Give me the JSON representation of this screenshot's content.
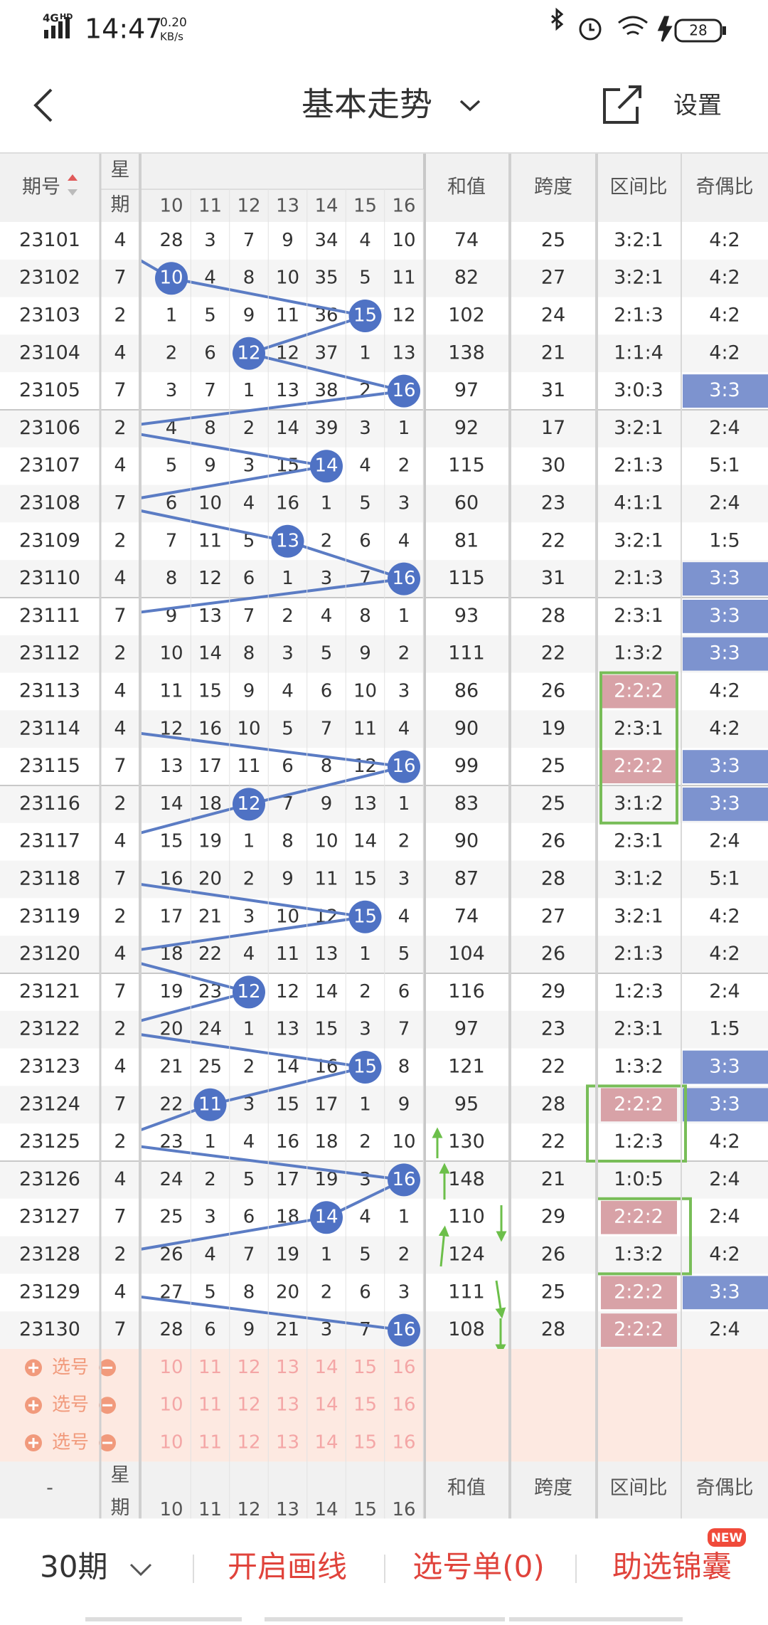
{
  "status_bar": {
    "network": "4G",
    "hd": "HD",
    "time": "14:47",
    "speed": "0.20",
    "speed_unit": "KB/s",
    "battery": "28"
  },
  "nav": {
    "title": "基本走势",
    "settings": "设置"
  },
  "table": {
    "headers": {
      "period": "期号",
      "weekday": [
        "星",
        "期"
      ],
      "numbers": [
        "10",
        "11",
        "12",
        "13",
        "14",
        "15",
        "16"
      ],
      "sum": "和值",
      "span": "跨度",
      "zone": "区间比",
      "odd_even": "奇偶比"
    },
    "rows": [
      {
        "period": "23101",
        "weekday": "4",
        "cells": [
          28,
          3,
          7,
          9,
          34,
          4,
          10
        ],
        "ball_column": null,
        "sum": 74,
        "span": 25,
        "zone": "3:2:1",
        "odd_even": "4:2"
      },
      {
        "period": "23102",
        "weekday": "7",
        "cells": [
          10,
          4,
          8,
          10,
          35,
          5,
          11
        ],
        "ball_column": 0,
        "sum": 82,
        "span": 27,
        "zone": "3:2:1",
        "odd_even": "4:2"
      },
      {
        "period": "23103",
        "weekday": "2",
        "cells": [
          1,
          5,
          9,
          11,
          36,
          15,
          12
        ],
        "ball_column": 5,
        "sum": 102,
        "span": 24,
        "zone": "2:1:3",
        "odd_even": "4:2"
      },
      {
        "period": "23104",
        "weekday": "4",
        "cells": [
          2,
          6,
          12,
          12,
          37,
          1,
          13
        ],
        "ball_column": 2,
        "sum": 138,
        "span": 21,
        "zone": "1:1:4",
        "odd_even": "4:2"
      },
      {
        "period": "23105",
        "weekday": "7",
        "cells": [
          3,
          7,
          1,
          13,
          38,
          2,
          16
        ],
        "ball_column": 6,
        "sum": 97,
        "span": 31,
        "zone": "3:0:3",
        "odd_even": "3:3",
        "odd_even_color": "#7d93cf"
      },
      {
        "period": "23106",
        "weekday": "2",
        "cells": [
          4,
          8,
          2,
          14,
          39,
          3,
          1
        ],
        "ball_column": null,
        "sum": 92,
        "span": 17,
        "zone": "3:2:1",
        "odd_even": "2:4"
      },
      {
        "period": "23107",
        "weekday": "4",
        "cells": [
          5,
          9,
          3,
          15,
          14,
          4,
          2
        ],
        "ball_column": 4,
        "sum": 115,
        "span": 30,
        "zone": "2:1:3",
        "odd_even": "5:1"
      },
      {
        "period": "23108",
        "weekday": "7",
        "cells": [
          6,
          10,
          4,
          16,
          1,
          5,
          3
        ],
        "ball_column": null,
        "sum": 60,
        "span": 23,
        "zone": "4:1:1",
        "odd_even": "2:4"
      },
      {
        "period": "23109",
        "weekday": "2",
        "cells": [
          7,
          11,
          5,
          13,
          2,
          6,
          4
        ],
        "ball_column": 3,
        "sum": 81,
        "span": 22,
        "zone": "3:2:1",
        "odd_even": "1:5"
      },
      {
        "period": "23110",
        "weekday": "4",
        "cells": [
          8,
          12,
          6,
          1,
          3,
          7,
          16
        ],
        "ball_column": 6,
        "sum": 115,
        "span": 31,
        "zone": "2:1:3",
        "odd_even": "3:3",
        "odd_even_color": "#7d93cf"
      },
      {
        "period": "23111",
        "weekday": "7",
        "cells": [
          9,
          13,
          7,
          2,
          4,
          8,
          1
        ],
        "ball_column": null,
        "sum": 93,
        "span": 28,
        "zone": "2:3:1",
        "odd_even": "3:3",
        "odd_even_color": "#7d93cf"
      },
      {
        "period": "23112",
        "weekday": "2",
        "cells": [
          10,
          14,
          8,
          3,
          5,
          9,
          2
        ],
        "ball_column": null,
        "sum": 111,
        "span": 22,
        "zone": "1:3:2",
        "odd_even": "3:3",
        "odd_even_color": "#7d93cf"
      },
      {
        "period": "23113",
        "weekday": "4",
        "cells": [
          11,
          15,
          9,
          4,
          6,
          10,
          3
        ],
        "ball_column": null,
        "sum": 86,
        "span": 26,
        "zone": "2:2:2",
        "zone_color": "#d8a2a7",
        "odd_even": "4:2"
      },
      {
        "period": "23114",
        "weekday": "4",
        "cells": [
          12,
          16,
          10,
          5,
          7,
          11,
          4
        ],
        "ball_column": null,
        "sum": 90,
        "span": 19,
        "zone": "2:3:1",
        "odd_even": "4:2"
      },
      {
        "period": "23115",
        "weekday": "7",
        "cells": [
          13,
          17,
          11,
          6,
          8,
          12,
          16
        ],
        "ball_column": 6,
        "sum": 99,
        "span": 25,
        "zone": "2:2:2",
        "zone_color": "#d8a2a7",
        "odd_even": "3:3",
        "odd_even_color": "#7d93cf"
      },
      {
        "period": "23116",
        "weekday": "2",
        "cells": [
          14,
          18,
          12,
          7,
          9,
          13,
          1
        ],
        "ball_column": 2,
        "sum": 83,
        "span": 25,
        "zone": "3:1:2",
        "odd_even": "3:3",
        "odd_even_color": "#7d93cf"
      },
      {
        "period": "23117",
        "weekday": "4",
        "cells": [
          15,
          19,
          1,
          8,
          10,
          14,
          2
        ],
        "ball_column": null,
        "sum": 90,
        "span": 26,
        "zone": "2:3:1",
        "odd_even": "2:4"
      },
      {
        "period": "23118",
        "weekday": "7",
        "cells": [
          16,
          20,
          2,
          9,
          11,
          15,
          3
        ],
        "ball_column": null,
        "sum": 87,
        "span": 28,
        "zone": "3:1:2",
        "odd_even": "5:1"
      },
      {
        "period": "23119",
        "weekday": "2",
        "cells": [
          17,
          21,
          3,
          10,
          12,
          15,
          4
        ],
        "ball_column": 5,
        "sum": 74,
        "span": 27,
        "zone": "3:2:1",
        "odd_even": "4:2"
      },
      {
        "period": "23120",
        "weekday": "4",
        "cells": [
          18,
          22,
          4,
          11,
          13,
          1,
          5
        ],
        "ball_column": null,
        "sum": 104,
        "span": 26,
        "zone": "2:1:3",
        "odd_even": "4:2"
      },
      {
        "period": "23121",
        "weekday": "7",
        "cells": [
          19,
          23,
          12,
          12,
          14,
          2,
          6
        ],
        "ball_column": 2,
        "sum": 116,
        "span": 29,
        "zone": "1:2:3",
        "odd_even": "2:4"
      },
      {
        "period": "23122",
        "weekday": "2",
        "cells": [
          20,
          24,
          1,
          13,
          15,
          3,
          7
        ],
        "ball_column": null,
        "sum": 97,
        "span": 23,
        "zone": "2:3:1",
        "odd_even": "1:5"
      },
      {
        "period": "23123",
        "weekday": "4",
        "cells": [
          21,
          25,
          2,
          14,
          16,
          15,
          8
        ],
        "ball_column": 5,
        "sum": 121,
        "span": 22,
        "zone": "1:3:2",
        "odd_even": "3:3",
        "odd_even_color": "#7d93cf"
      },
      {
        "period": "23124",
        "weekday": "7",
        "cells": [
          22,
          11,
          3,
          15,
          17,
          1,
          9
        ],
        "ball_column": 1,
        "sum": 95,
        "span": 28,
        "zone": "2:2:2",
        "zone_color": "#d8a2a7",
        "odd_even": "3:3",
        "odd_even_color": "#7d93cf"
      },
      {
        "period": "23125",
        "weekday": "2",
        "cells": [
          23,
          1,
          4,
          16,
          18,
          2,
          10
        ],
        "ball_column": null,
        "sum": 130,
        "span": 22,
        "zone": "1:2:3",
        "odd_even": "4:2"
      },
      {
        "period": "23126",
        "weekday": "4",
        "cells": [
          24,
          2,
          5,
          17,
          19,
          3,
          16
        ],
        "ball_column": 6,
        "sum": 148,
        "span": 21,
        "zone": "1:0:5",
        "odd_even": "2:4"
      },
      {
        "period": "23127",
        "weekday": "7",
        "cells": [
          25,
          3,
          6,
          18,
          14,
          4,
          1
        ],
        "ball_column": 4,
        "sum": 110,
        "span": 29,
        "zone": "2:2:2",
        "zone_color": "#d8a2a7",
        "odd_even": "2:4"
      },
      {
        "period": "23128",
        "weekday": "2",
        "cells": [
          26,
          4,
          7,
          19,
          1,
          5,
          2
        ],
        "ball_column": null,
        "sum": 124,
        "span": 26,
        "zone": "1:3:2",
        "odd_even": "4:2"
      },
      {
        "period": "23129",
        "weekday": "4",
        "cells": [
          27,
          5,
          8,
          20,
          2,
          6,
          3
        ],
        "ball_column": null,
        "sum": 111,
        "span": 25,
        "zone": "2:2:2",
        "zone_color": "#d8a2a7",
        "odd_even": "3:3",
        "odd_even_color": "#7d93cf"
      },
      {
        "period": "23130",
        "weekday": "7",
        "cells": [
          28,
          6,
          9,
          21,
          3,
          7,
          16
        ],
        "ball_column": 6,
        "sum": 108,
        "span": 28,
        "zone": "2:2:2",
        "zone_color": "#d8a2a7",
        "odd_even": "2:4"
      }
    ],
    "pick_rows": [
      "选号",
      "选号",
      "选号"
    ],
    "footer_period": "-"
  },
  "bottom_bar": {
    "periods": "30期",
    "draw": "开启画线",
    "pick_list": "选号单(0)",
    "helper": "助选锦囊",
    "badge": "NEW"
  }
}
